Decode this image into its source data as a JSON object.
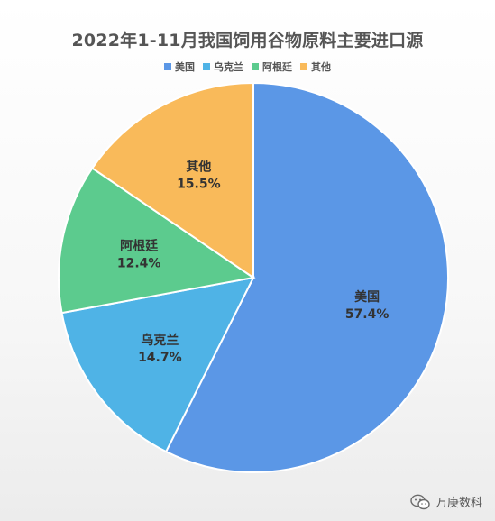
{
  "chart_data": {
    "type": "pie",
    "title": "2022年1-11月我国饲用谷物原料主要进口源",
    "categories": [
      "美国",
      "乌克兰",
      "阿根廷",
      "其他"
    ],
    "values": [
      57.4,
      14.7,
      12.4,
      15.5
    ],
    "value_labels": [
      "57.4%",
      "14.7%",
      "12.4%",
      "15.5%"
    ],
    "colors": [
      "#5B97E6",
      "#4FB3E6",
      "#5CCB8E",
      "#F9BA5A"
    ],
    "legend": "top",
    "start_angle": "12 o'clock",
    "direction": "clockwise"
  },
  "watermark": {
    "text": "万庚数科",
    "icon": "wechat-icon"
  }
}
